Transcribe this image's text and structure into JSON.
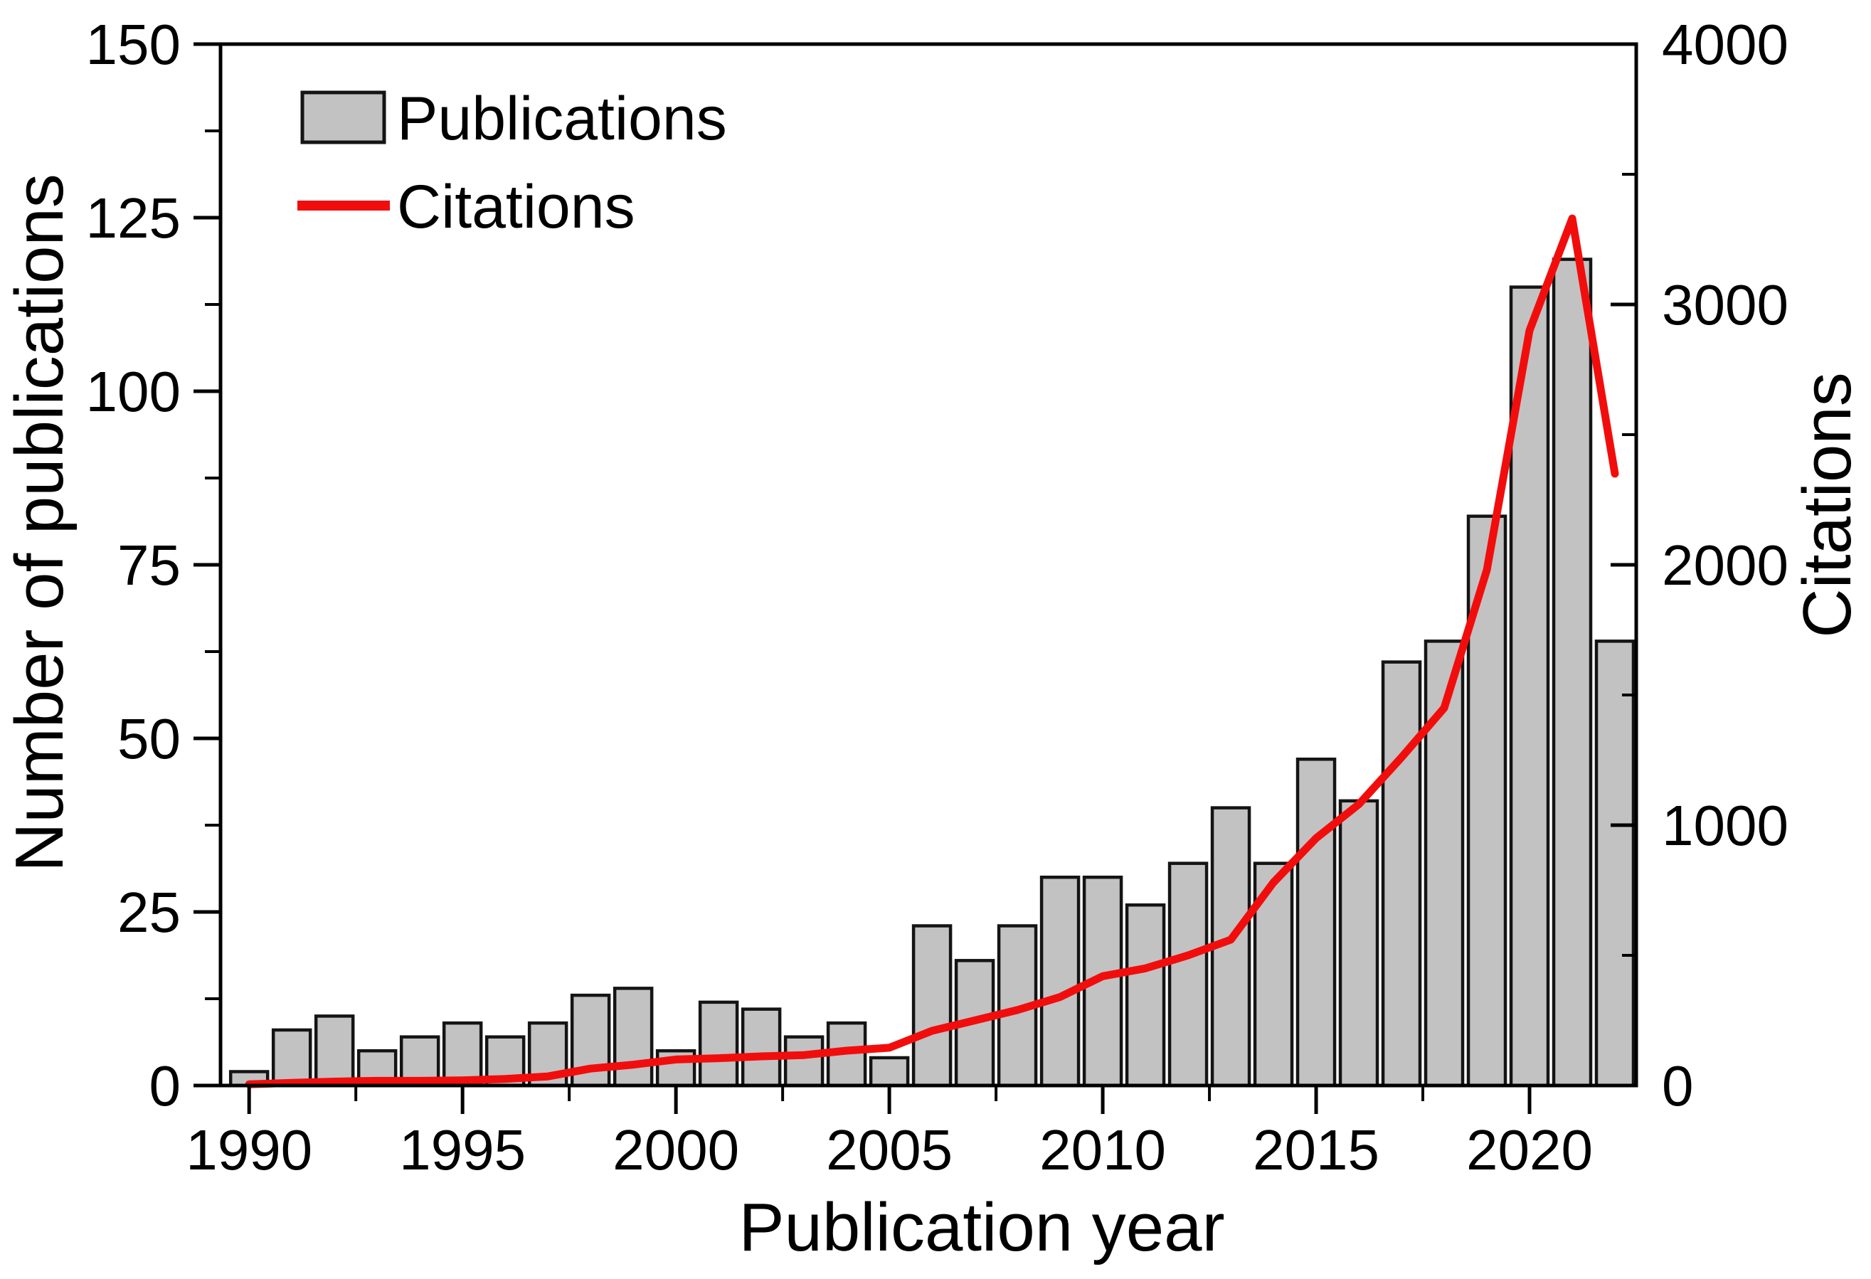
{
  "chart_data": {
    "type": "bar",
    "title": "",
    "x": [
      1990,
      1991,
      1992,
      1993,
      1994,
      1995,
      1996,
      1997,
      1998,
      1999,
      2000,
      2001,
      2002,
      2003,
      2004,
      2005,
      2006,
      2007,
      2008,
      2009,
      2010,
      2011,
      2012,
      2013,
      2014,
      2015,
      2016,
      2017,
      2018,
      2019,
      2020,
      2021,
      2022
    ],
    "series": [
      {
        "name": "Publications",
        "type": "bar",
        "axis": "left",
        "values": [
          2,
          8,
          10,
          5,
          7,
          9,
          7,
          9,
          13,
          14,
          5,
          12,
          11,
          7,
          9,
          4,
          23,
          18,
          23,
          30,
          30,
          26,
          32,
          40,
          32,
          47,
          41,
          61,
          64,
          82,
          115,
          119,
          64
        ]
      },
      {
        "name": "Citations",
        "type": "line",
        "axis": "right",
        "values": [
          5,
          10,
          15,
          18,
          18,
          20,
          25,
          35,
          65,
          80,
          100,
          105,
          112,
          117,
          134,
          145,
          210,
          250,
          290,
          340,
          420,
          450,
          500,
          560,
          780,
          950,
          1080,
          1260,
          1450,
          1980,
          2900,
          3330,
          2350
        ]
      }
    ],
    "x_axis": {
      "label": "Publication year",
      "min": 1989.33,
      "max": 2022.5,
      "major_ticks": [
        1990,
        1995,
        2000,
        2005,
        2010,
        2015,
        2020
      ],
      "major_tick_labels": [
        "1990",
        "1995",
        "2000",
        "2005",
        "2010",
        "2015",
        "2020"
      ],
      "minor_ticks": [
        1992.5,
        1997.5,
        2002.5,
        2007.5,
        2012.5,
        2017.5
      ]
    },
    "left_axis": {
      "label": "Number of publications",
      "min": 0,
      "max": 150,
      "major_ticks": [
        0,
        25,
        50,
        75,
        100,
        125,
        150
      ],
      "major_tick_labels": [
        "0",
        "25",
        "50",
        "75",
        "100",
        "125",
        "150"
      ],
      "minor_ticks": [
        12.5,
        37.5,
        62.5,
        87.5,
        112.5,
        137.5
      ]
    },
    "right_axis": {
      "label": "Citations",
      "min": 0,
      "max": 4000,
      "major_ticks": [
        0,
        1000,
        2000,
        3000,
        4000
      ],
      "major_tick_labels": [
        "0",
        "1000",
        "2000",
        "3000",
        "4000"
      ],
      "minor_ticks": [
        500,
        1500,
        2500,
        3500
      ]
    },
    "legend": {
      "items": [
        {
          "label": "Publications",
          "swatch": "bar-swatch"
        },
        {
          "label": "Citations",
          "swatch": "line-swatch"
        }
      ]
    },
    "layout_hints": {
      "grid": "off",
      "legend_position": "top-left-inside"
    },
    "colors": {
      "bar_fill": "#c2c2c2",
      "bar_border": "#141414",
      "line": "#f20d0d",
      "frame": "#000000",
      "text": "#000000",
      "background": "#ffffff"
    }
  }
}
